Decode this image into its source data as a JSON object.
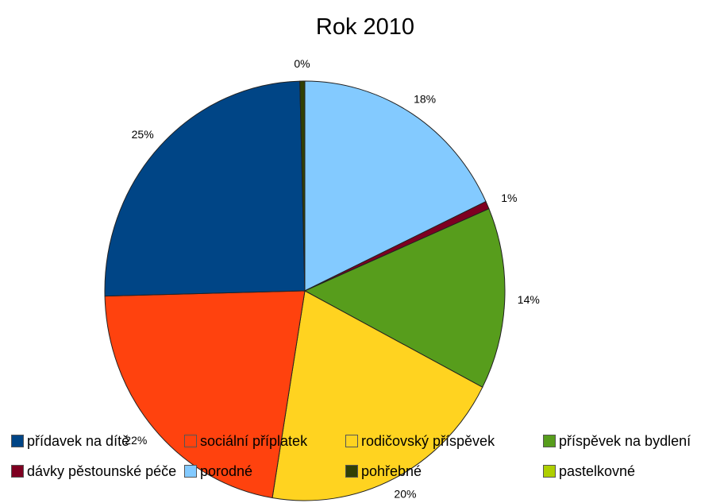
{
  "chart_data": {
    "type": "pie",
    "title": "Rok 2010",
    "slices": [
      {
        "label": "přídavek na dítě",
        "value": 25,
        "display": "25%",
        "color": "#004586"
      },
      {
        "label": "sociální příplatek",
        "value": 22,
        "display": "22%",
        "color": "#ff420e"
      },
      {
        "label": "rodičovský příspěvek",
        "value": 20,
        "display": "20%",
        "color": "#ffd320"
      },
      {
        "label": "příspěvek na bydlení",
        "value": 14,
        "display": "14%",
        "color": "#579d1c"
      },
      {
        "label": "dávky pěstounské péče",
        "value": 0.6,
        "display": "1%",
        "color": "#7e0021"
      },
      {
        "label": "porodné",
        "value": 18,
        "display": "18%",
        "color": "#83caff"
      },
      {
        "label": "pohřebné",
        "value": 0.4,
        "display": "0%",
        "color": "#314004"
      },
      {
        "label": "pastelkovné",
        "value": 0,
        "display": "",
        "color": "#aecf00"
      }
    ],
    "legend_position": "bottom"
  }
}
